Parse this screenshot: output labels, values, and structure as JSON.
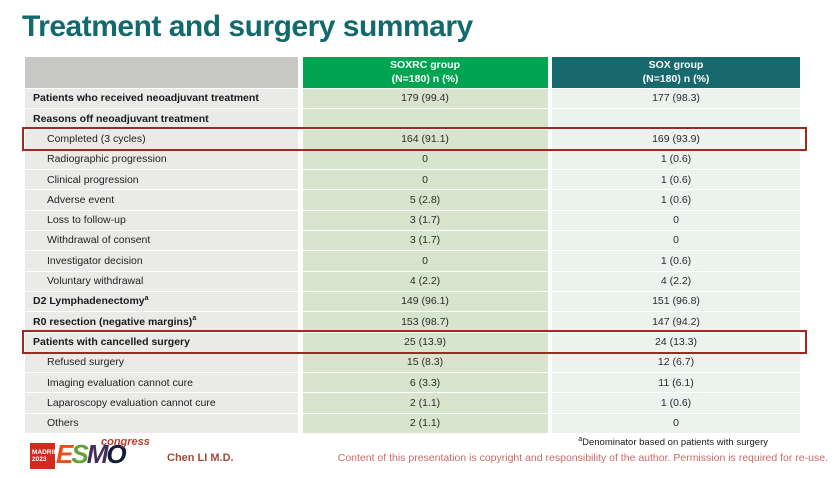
{
  "slide": {
    "title": "Treatment and surgery summary"
  },
  "table": {
    "columns": [
      {
        "label": "",
        "sublabel": ""
      },
      {
        "label": "SOXRC group",
        "sublabel": "(N=180)  n (%)"
      },
      {
        "label": "SOX group",
        "sublabel": "(N=180)  n (%)"
      }
    ],
    "rows": [
      {
        "label": "Patients who received neoadjuvant treatment",
        "bold": true,
        "indent": false,
        "soxrc": "179 (99.4)",
        "sox": "177 (98.3)",
        "highlight": false
      },
      {
        "label": "Reasons off neoadjuvant treatment",
        "bold": true,
        "indent": false,
        "soxrc": "",
        "sox": "",
        "highlight": false
      },
      {
        "label": "Completed (3 cycles)",
        "bold": false,
        "indent": true,
        "soxrc": "164 (91.1)",
        "sox": "169 (93.9)",
        "highlight": true
      },
      {
        "label": "Radiographic progression",
        "bold": false,
        "indent": true,
        "soxrc": "0",
        "sox": "1 (0.6)",
        "highlight": false
      },
      {
        "label": "Clinical progression",
        "bold": false,
        "indent": true,
        "soxrc": "0",
        "sox": "1 (0.6)",
        "highlight": false
      },
      {
        "label": "Adverse event",
        "bold": false,
        "indent": true,
        "soxrc": "5 (2.8)",
        "sox": "1 (0.6)",
        "highlight": false
      },
      {
        "label": "Loss to follow-up",
        "bold": false,
        "indent": true,
        "soxrc": "3 (1.7)",
        "sox": "0",
        "highlight": false
      },
      {
        "label": "Withdrawal of consent",
        "bold": false,
        "indent": true,
        "soxrc": "3 (1.7)",
        "sox": "0",
        "highlight": false
      },
      {
        "label": "Investigator decision",
        "bold": false,
        "indent": true,
        "soxrc": "0",
        "sox": "1 (0.6)",
        "highlight": false
      },
      {
        "label": "Voluntary withdrawal",
        "bold": false,
        "indent": true,
        "soxrc": "4 (2.2)",
        "sox": "4 (2.2)",
        "highlight": false
      },
      {
        "label": "D2 Lymphadenectomy",
        "sup": "a",
        "bold": true,
        "indent": false,
        "soxrc": "149 (96.1)",
        "sox": "151 (96.8)",
        "highlight": false
      },
      {
        "label": "R0 resection (negative margins)",
        "sup": "a",
        "bold": true,
        "indent": false,
        "soxrc": "153 (98.7)",
        "sox": "147 (94.2)",
        "highlight": false
      },
      {
        "label": "Patients with cancelled surgery",
        "bold": true,
        "indent": false,
        "soxrc": "25 (13.9)",
        "sox": "24 (13.3)",
        "highlight": true
      },
      {
        "label": "Refused surgery",
        "bold": false,
        "indent": true,
        "soxrc": "15 (8.3)",
        "sox": "12 (6.7)",
        "highlight": false
      },
      {
        "label": "Imaging evaluation cannot cure",
        "bold": false,
        "indent": true,
        "soxrc": "6 (3.3)",
        "sox": "11 (6.1)",
        "highlight": false
      },
      {
        "label": "Laparoscopy evaluation cannot cure",
        "bold": false,
        "indent": true,
        "soxrc": "2 (1.1)",
        "sox": "1 (0.6)",
        "highlight": false
      },
      {
        "label": "Others",
        "bold": false,
        "indent": true,
        "soxrc": "2 (1.1)",
        "sox": "0",
        "highlight": false
      }
    ]
  },
  "footer": {
    "logo": {
      "city": "MADRID",
      "year": "2023",
      "letters": [
        "E",
        "S",
        "M",
        "O"
      ],
      "congress": "congress"
    },
    "author": "Chen LI M.D.",
    "footnote_sup": "a",
    "footnote": "Denominator based on patients with surgery",
    "copyright": "Content of this presentation is copyright and responsibility of the author.  Permission is required for re-use."
  },
  "colors": {
    "title_text": "#136a6c",
    "header_soxrc_bg": "#00a551",
    "header_sox_bg": "#17696e",
    "header_empty_bg": "#c7c7c6",
    "label_col_bg": "#eaeae8",
    "soxrc_col_bg": "#d8e5ce",
    "sox_col_bg": "#ecf2ee",
    "highlight_border": "#9d2b22",
    "madrid_badge_bg": "#d52b1e",
    "author_text": "#a34a38",
    "copyright_text": "#c96a66"
  }
}
